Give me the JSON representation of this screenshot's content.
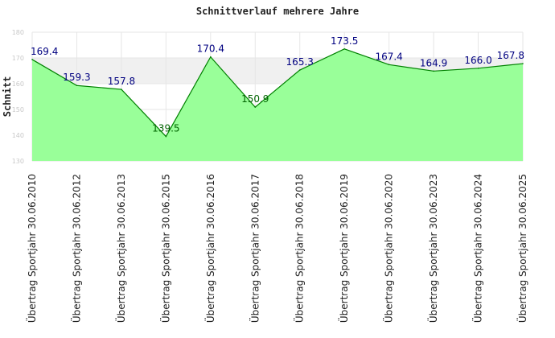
{
  "chart_data": {
    "type": "area",
    "title": "Schnittverlauf mehrere Jahre",
    "xlabel": "",
    "ylabel": "Schnitt",
    "categories": [
      "Übertrag Sportjahr 30.06.2010",
      "Übertrag Sportjahr 30.06.2012",
      "Übertrag Sportjahr 30.06.2013",
      "Übertrag Sportjahr 30.06.2015",
      "Übertrag Sportjahr 30.06.2016",
      "Übertrag Sportjahr 30.06.2017",
      "Übertrag Sportjahr 30.06.2018",
      "Übertrag Sportjahr 30.06.2019",
      "Übertrag Sportjahr 30.06.2020",
      "Übertrag Sportjahr 30.06.2023",
      "Übertrag Sportjahr 30.06.2024",
      "Übertrag Sportjahr 30.06.2025"
    ],
    "values": [
      169.4,
      159.3,
      157.8,
      139.5,
      170.4,
      150.9,
      165.3,
      173.5,
      167.4,
      164.9,
      166.0,
      167.8
    ],
    "data_labels": [
      "169.4",
      "159.3",
      "157.8",
      "139.5",
      "170.4",
      "150.9",
      "165.3",
      "173.5",
      "167.4",
      "164.9",
      "166.0",
      "167.8"
    ],
    "ylim": [
      130,
      180
    ],
    "yticks": [
      130,
      140,
      150,
      160,
      170,
      180
    ],
    "ytick_labels": [
      "130",
      "140",
      "150",
      "160",
      "170",
      "180"
    ],
    "grid": true,
    "band_ranges": [
      [
        160,
        170
      ]
    ],
    "colors": {
      "fill": "#99ff99",
      "line": "#008000",
      "band": "#f0f0f0",
      "grid": "#e6e6e6",
      "label_above_fill": "#000080",
      "label_on_fill": "#006400"
    }
  }
}
